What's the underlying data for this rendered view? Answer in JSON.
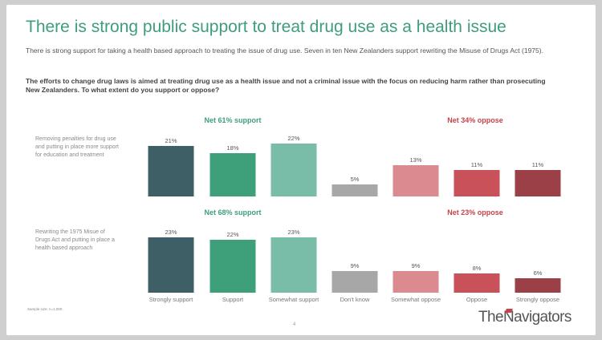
{
  "header": {
    "title": "There is strong public support to treat drug use as a health issue",
    "subtitle": "There is strong support for taking a health based approach to treating the issue of drug use. Seven in ten New Zealanders support rewriting the Misuse of Drugs Act (1975).",
    "question": "The efforts to change drug laws is aimed at treating  drug use as a health issue and not a criminal issue with the focus on reducing harm rather than prosecuting New Zealanders. To what extent do you support or oppose?"
  },
  "footer": {
    "sample": "Sample size: n=1,000",
    "page": "4",
    "brand": "TheNavigators",
    "brand_prefix": "The",
    "brand_a": "N",
    "brand_rest": "avigators",
    "brand_accent_color": "#c8424c"
  },
  "chart_data": {
    "type": "bar",
    "categories": [
      "Strongly support",
      "Support",
      "Somewhat support",
      "Don't know",
      "Somewhat oppose",
      "Oppose",
      "Strongly oppose"
    ],
    "colors": [
      "#3f5f66",
      "#3ea07a",
      "#79bca8",
      "#a7a7a7",
      "#db8a8f",
      "#c9525a",
      "#9b4046"
    ],
    "net_colors": {
      "support": "#3e9e7c",
      "oppose": "#c8424c"
    },
    "ylim": [
      0,
      25
    ],
    "series": [
      {
        "name": "Removing penalties for drug use and putting in place more support for education and treatment",
        "label_lines": [
          "Removing penalties for drug use",
          "and putting in place more support",
          "for education and treatment"
        ],
        "values": [
          21,
          18,
          22,
          5,
          13,
          11,
          11
        ],
        "value_labels": [
          "21%",
          "18%",
          "22%",
          "5%",
          "13%",
          "11%",
          "11%"
        ],
        "net_support": "Net 61% support",
        "net_oppose": "Net 34% oppose"
      },
      {
        "name": "Rewriting the 1975 Misue of Drugs Act and putting in place a health based approach",
        "label_lines": [
          "Rewriting the 1975 Misue of",
          "Drugs Act and putting in place a",
          "health based approach"
        ],
        "values": [
          23,
          22,
          23,
          9,
          9,
          8,
          6
        ],
        "value_labels": [
          "23%",
          "22%",
          "23%",
          "9%",
          "9%",
          "8%",
          "6%"
        ],
        "net_support": "Net 68% support",
        "net_oppose": "Net 23% oppose"
      }
    ]
  }
}
